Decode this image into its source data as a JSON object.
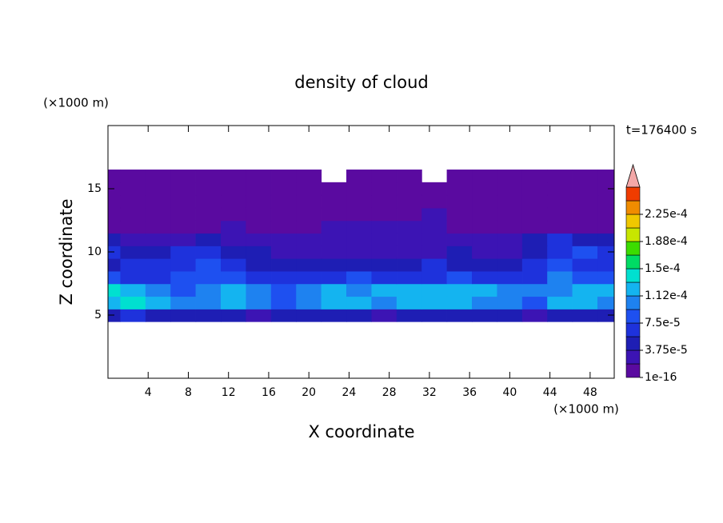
{
  "chart_data": {
    "type": "contour",
    "title": "density of cloud",
    "y_units": "(×1000 m)",
    "x_units": "(×1000 m)",
    "time_label": "t=176400 s",
    "xlabel": "X coordinate",
    "ylabel": "Z coordinate",
    "xlim": [
      0,
      50.4
    ],
    "ylim": [
      0,
      20
    ],
    "xticks": [
      4,
      8,
      12,
      16,
      20,
      24,
      28,
      32,
      36,
      40,
      44,
      48
    ],
    "yticks": [
      5,
      10,
      15
    ],
    "x": [
      0,
      2.5,
      5,
      7.5,
      10,
      12.5,
      15,
      17.5,
      20,
      22.5,
      25,
      27.5,
      30,
      32.5,
      35,
      37.5,
      40,
      42.5,
      45,
      47.5,
      50
    ],
    "z": [
      5,
      6,
      7,
      8,
      9,
      10,
      11,
      12,
      13,
      14,
      15,
      16
    ],
    "values": [
      [
        4.5e-05,
        6e-05,
        4.5e-05,
        4.5e-05,
        4.5e-05,
        4.5e-05,
        2.5e-05,
        4.5e-05,
        4.5e-05,
        4.5e-05,
        4.5e-05,
        2.5e-05,
        4.5e-05,
        4.5e-05,
        4.5e-05,
        4.5e-05,
        4.5e-05,
        2.5e-05,
        4.5e-05,
        4.5e-05,
        4.5e-05
      ],
      [
        0.00012,
        0.00014,
        0.00012,
        0.0001,
        0.0001,
        0.00012,
        0.0001,
        8e-05,
        0.0001,
        0.00012,
        0.00012,
        0.0001,
        0.00012,
        0.00012,
        0.00012,
        0.0001,
        0.0001,
        8e-05,
        0.00012,
        0.00012,
        0.0001
      ],
      [
        0.00014,
        0.00012,
        0.0001,
        8e-05,
        0.0001,
        0.00012,
        0.0001,
        8e-05,
        0.0001,
        0.00012,
        0.0001,
        0.00012,
        0.00012,
        0.00012,
        0.00012,
        0.00012,
        0.0001,
        0.0001,
        0.0001,
        0.00012,
        0.00012
      ],
      [
        8e-05,
        6e-05,
        6e-05,
        8e-05,
        8e-05,
        8e-05,
        6e-05,
        6e-05,
        6e-05,
        6e-05,
        8e-05,
        6e-05,
        6e-05,
        6e-05,
        8e-05,
        6e-05,
        6e-05,
        6e-05,
        0.0001,
        8e-05,
        8e-05
      ],
      [
        4.5e-05,
        6e-05,
        6e-05,
        6e-05,
        8e-05,
        6e-05,
        4.5e-05,
        4.5e-05,
        4.5e-05,
        4.5e-05,
        4.5e-05,
        4.5e-05,
        4.5e-05,
        6e-05,
        4.5e-05,
        4.5e-05,
        4.5e-05,
        6e-05,
        8e-05,
        6e-05,
        6e-05
      ],
      [
        6e-05,
        4.5e-05,
        4.5e-05,
        6e-05,
        6e-05,
        4.5e-05,
        4.5e-05,
        2.5e-05,
        2.5e-05,
        2.5e-05,
        2.5e-05,
        2.5e-05,
        2.5e-05,
        2.5e-05,
        4.5e-05,
        2.5e-05,
        2.5e-05,
        4.5e-05,
        6e-05,
        8e-05,
        6e-05
      ],
      [
        4.5e-05,
        2.5e-05,
        2.5e-05,
        2.5e-05,
        4.5e-05,
        2.5e-05,
        2.5e-05,
        2.5e-05,
        2.5e-05,
        2.5e-05,
        2.5e-05,
        2.5e-05,
        2.5e-05,
        2.5e-05,
        2.5e-05,
        2.5e-05,
        2.5e-05,
        4.5e-05,
        6e-05,
        4.5e-05,
        4.5e-05
      ],
      [
        5e-06,
        5e-06,
        5e-06,
        5e-06,
        5e-06,
        2.5e-05,
        5e-06,
        5e-06,
        5e-06,
        2.5e-05,
        2.5e-05,
        2.5e-05,
        2.5e-05,
        2.5e-05,
        5e-06,
        5e-06,
        5e-06,
        5e-06,
        5e-06,
        5e-06,
        5e-06
      ],
      [
        5e-06,
        5e-06,
        5e-06,
        5e-06,
        5e-06,
        5e-06,
        5e-06,
        5e-06,
        5e-06,
        5e-06,
        5e-06,
        5e-06,
        5e-06,
        2.5e-05,
        5e-06,
        5e-06,
        5e-06,
        5e-06,
        5e-06,
        5e-06,
        5e-06
      ],
      [
        5e-06,
        5e-06,
        5e-06,
        5e-06,
        5e-06,
        5e-06,
        5e-06,
        5e-06,
        5e-06,
        5e-06,
        5e-06,
        5e-06,
        5e-06,
        5e-06,
        5e-06,
        5e-06,
        5e-06,
        5e-06,
        5e-06,
        5e-06,
        5e-06
      ],
      [
        5e-06,
        5e-06,
        5e-06,
        5e-06,
        5e-06,
        5e-06,
        5e-06,
        5e-06,
        5e-06,
        5e-06,
        5e-06,
        5e-06,
        5e-06,
        5e-06,
        5e-06,
        5e-06,
        5e-06,
        5e-06,
        5e-06,
        5e-06,
        5e-06
      ],
      [
        5e-06,
        5e-06,
        5e-06,
        5e-06,
        5e-06,
        5e-06,
        5e-06,
        5e-06,
        5e-06,
        null,
        5e-06,
        5e-06,
        5e-06,
        null,
        5e-06,
        5e-06,
        5e-06,
        5e-06,
        5e-06,
        5e-06,
        5e-06
      ]
    ],
    "levels": [
      1e-16,
      1.875e-05,
      3.75e-05,
      5.625e-05,
      7.5e-05,
      9.375e-05,
      0.0001125,
      0.00013125,
      0.00015,
      0.00016875,
      0.0001875,
      0.00020625,
      0.000225,
      0.00024375
    ],
    "colors": [
      "#5a0aa0",
      "#3c14b4",
      "#1e1eb4",
      "#1e32dc",
      "#1e50f0",
      "#1e82f0",
      "#14b4f0",
      "#00e0d0",
      "#00dc64",
      "#3cdc00",
      "#c8e600",
      "#f0c800",
      "#f08c00",
      "#f03c00"
    ],
    "extend_color": "#f4a8a8",
    "colorbar_ticks": [
      {
        "value": 1e-16,
        "label": "1e-16"
      },
      {
        "value": 3.75e-05,
        "label": "3.75e-5"
      },
      {
        "value": 7.5e-05,
        "label": "7.5e-5"
      },
      {
        "value": 0.0001125,
        "label": "1.12e-4"
      },
      {
        "value": 0.00015,
        "label": "1.5e-4"
      },
      {
        "value": 0.0001875,
        "label": "1.88e-4"
      },
      {
        "value": 0.000225,
        "label": "2.25e-4"
      }
    ]
  }
}
